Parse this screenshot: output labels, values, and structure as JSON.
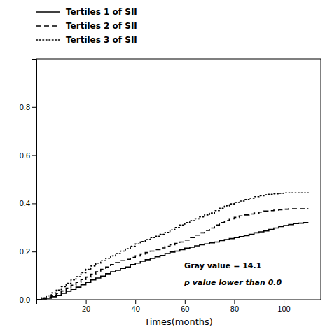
{
  "chart_data": {
    "type": "step",
    "xlabel": "Times(months)",
    "xlim": [
      0,
      115
    ],
    "ylim": [
      0.0,
      1.0
    ],
    "xticks": [
      20,
      40,
      60,
      80,
      100
    ],
    "yticks": [
      {
        "value": 0.0,
        "label": "0.0"
      },
      0.2,
      0.4,
      0.6,
      0.8
    ],
    "grid": false,
    "legend": "top",
    "annotations": [
      "Gray value = 14.1",
      "p value lower than 0.0"
    ],
    "x": [
      0,
      2,
      4,
      6,
      8,
      10,
      12,
      14,
      16,
      18,
      20,
      22,
      24,
      26,
      28,
      30,
      32,
      34,
      36,
      38,
      40,
      42,
      44,
      46,
      48,
      50,
      52,
      54,
      56,
      58,
      60,
      62,
      64,
      66,
      68,
      70,
      72,
      74,
      76,
      78,
      80,
      82,
      84,
      86,
      88,
      90,
      92,
      94,
      96,
      98,
      100,
      102,
      104,
      106,
      108,
      110
    ],
    "series": [
      {
        "name": "Tertiles 1 of SII",
        "color": "#000000",
        "line_style": "solid",
        "values": [
          0.0,
          0.003,
          0.006,
          0.012,
          0.018,
          0.026,
          0.035,
          0.043,
          0.052,
          0.062,
          0.072,
          0.082,
          0.09,
          0.098,
          0.108,
          0.116,
          0.122,
          0.13,
          0.136,
          0.146,
          0.152,
          0.16,
          0.166,
          0.172,
          0.178,
          0.184,
          0.192,
          0.198,
          0.202,
          0.208,
          0.214,
          0.218,
          0.224,
          0.228,
          0.232,
          0.236,
          0.24,
          0.246,
          0.25,
          0.254,
          0.258,
          0.262,
          0.266,
          0.272,
          0.278,
          0.282,
          0.286,
          0.292,
          0.298,
          0.304,
          0.308,
          0.312,
          0.316,
          0.318,
          0.32,
          0.32
        ]
      },
      {
        "name": "Tertiles 2 of SII",
        "color": "#000000",
        "line_style": "dashed",
        "values": [
          0.0,
          0.005,
          0.01,
          0.018,
          0.026,
          0.036,
          0.048,
          0.06,
          0.072,
          0.084,
          0.094,
          0.106,
          0.116,
          0.126,
          0.136,
          0.146,
          0.154,
          0.162,
          0.168,
          0.176,
          0.182,
          0.19,
          0.196,
          0.202,
          0.208,
          0.215,
          0.222,
          0.228,
          0.234,
          0.24,
          0.248,
          0.258,
          0.268,
          0.278,
          0.288,
          0.298,
          0.31,
          0.32,
          0.328,
          0.336,
          0.342,
          0.348,
          0.352,
          0.356,
          0.36,
          0.364,
          0.368,
          0.37,
          0.372,
          0.374,
          0.376,
          0.378,
          0.378,
          0.378,
          0.378,
          0.378
        ]
      },
      {
        "name": "Tertiles 3 of SII",
        "color": "#000000",
        "line_style": "dotted",
        "values": [
          0.0,
          0.008,
          0.016,
          0.028,
          0.04,
          0.054,
          0.068,
          0.082,
          0.096,
          0.112,
          0.126,
          0.14,
          0.152,
          0.162,
          0.172,
          0.182,
          0.192,
          0.202,
          0.212,
          0.222,
          0.232,
          0.242,
          0.25,
          0.258,
          0.264,
          0.272,
          0.28,
          0.29,
          0.3,
          0.31,
          0.32,
          0.328,
          0.336,
          0.344,
          0.352,
          0.36,
          0.37,
          0.38,
          0.39,
          0.398,
          0.404,
          0.41,
          0.416,
          0.422,
          0.428,
          0.432,
          0.436,
          0.438,
          0.44,
          0.442,
          0.444,
          0.444,
          0.444,
          0.444,
          0.444,
          0.444
        ]
      }
    ]
  }
}
